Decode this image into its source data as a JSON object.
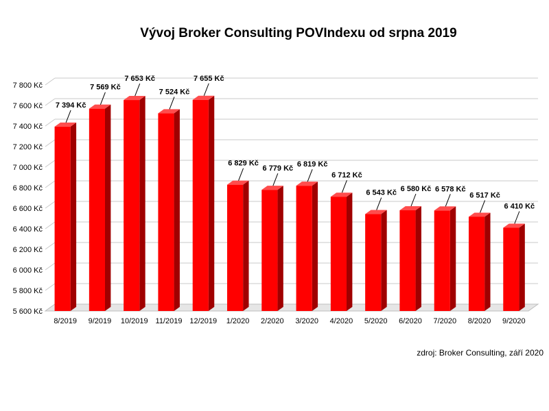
{
  "chart_data": {
    "type": "bar",
    "title": "Vývoj Broker Consulting POVIndexu od srpna 2019",
    "source": "zdroj: Broker Consulting, září 2020",
    "categories": [
      "8/2019",
      "9/2019",
      "10/2019",
      "11/2019",
      "12/2019",
      "1/2020",
      "2/2020",
      "3/2020",
      "4/2020",
      "5/2020",
      "6/2020",
      "7/2020",
      "8/2020",
      "9/2020"
    ],
    "values": [
      7394,
      7569,
      7653,
      7524,
      7655,
      6829,
      6779,
      6819,
      6712,
      6543,
      6580,
      6578,
      6517,
      6410
    ],
    "value_labels": [
      "7 394 Kč",
      "7 569 Kč",
      "7 653 Kč",
      "7 524 Kč",
      "7 655 Kč",
      "6 829 Kč",
      "6 779 Kč",
      "6 819 Kč",
      "6 712 Kč",
      "6 543 Kč",
      "6 580 Kč",
      "6 578 Kč",
      "6 517 Kč",
      "6 410 Kč"
    ],
    "yticks": [
      5600,
      5800,
      6000,
      6200,
      6400,
      6600,
      6800,
      7000,
      7200,
      7400,
      7600,
      7800
    ],
    "ytick_labels": [
      "5 600 Kč",
      "5 800 Kč",
      "6 000 Kč",
      "6 200 Kč",
      "6 400 Kč",
      "6 600 Kč",
      "6 800 Kč",
      "7 000 Kč",
      "7 200 Kč",
      "7 400 Kč",
      "7 600 Kč",
      "7 800 Kč"
    ],
    "ylim": [
      5600,
      7800
    ],
    "grid": true,
    "legend": "none",
    "bar_color": "#ff0000",
    "xlabel": "",
    "ylabel": ""
  }
}
